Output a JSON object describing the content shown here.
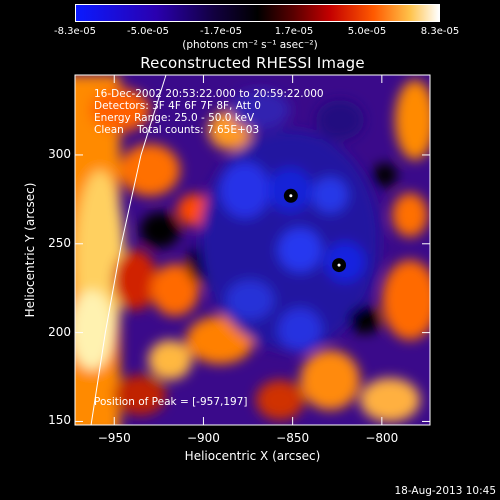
{
  "colorbar": {
    "ticks": [
      "-8.3e-05",
      "-5.0e-05",
      "-1.7e-05",
      "1.7e-05",
      "5.0e-05",
      "8.3e-05"
    ],
    "unit_label": "(photons cm⁻² s⁻¹ asec⁻²)",
    "colors": [
      "#0a1aff",
      "#2a00b0",
      "#000000",
      "#b00000",
      "#ff6a00",
      "#ffe07a",
      "#ffffff"
    ]
  },
  "chart_data": {
    "type": "heatmap",
    "title": "Reconstructed RHESSI Image",
    "xlabel": "Heliocentric X (arcsec)",
    "ylabel": "Heliocentric Y (arcsec)",
    "xlim": [
      -972,
      -773
    ],
    "ylim": [
      148,
      345
    ],
    "x_ticks": [
      -950,
      -900,
      -850,
      -800
    ],
    "y_ticks": [
      150,
      200,
      250,
      300
    ],
    "annotation_lines": [
      "16-Dec-2002 20:53:22.000 to 20:59:22.000",
      "Detectors: 3F 4F 6F 7F 8F, Att 0",
      "Energy Range: 25.0 - 50.0 keV",
      "Clean    Total counts: 7.65E+03"
    ],
    "peak_label": "Position of Peak = [-957,197]",
    "markers": [
      {
        "x": -851,
        "y": 277
      },
      {
        "x": -824,
        "y": 238
      }
    ],
    "limb_curve": [
      {
        "x": -963,
        "y": 148
      },
      {
        "x": -955,
        "y": 200
      },
      {
        "x": -946,
        "y": 250
      },
      {
        "x": -935,
        "y": 300
      },
      {
        "x": -921,
        "y": 345
      }
    ]
  },
  "footer": {
    "timestamp": "18-Aug-2013 10:45"
  }
}
